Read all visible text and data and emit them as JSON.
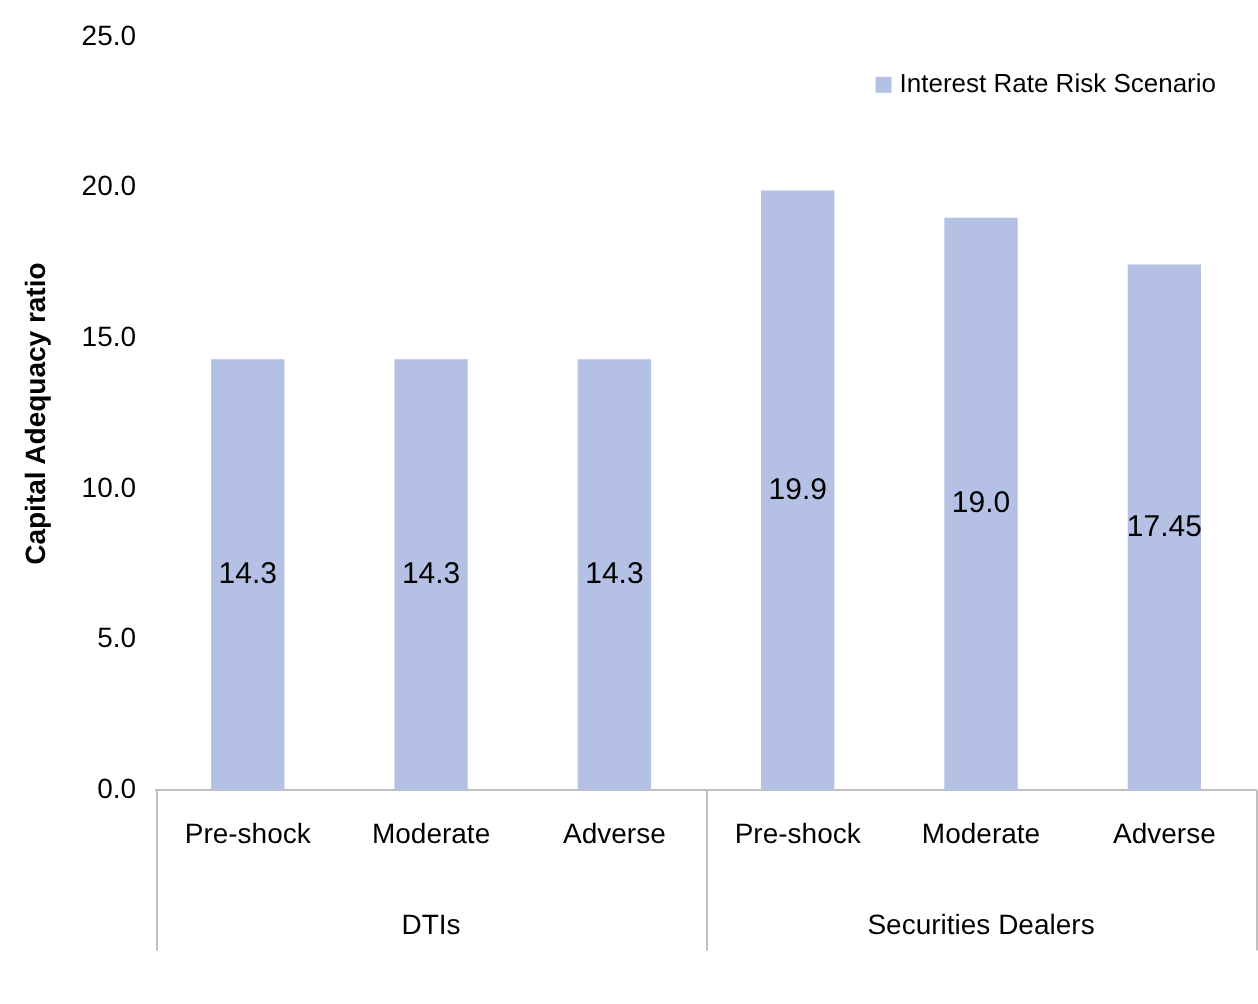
{
  "chart_data": {
    "type": "bar",
    "ylabel": "Capital Adequacy ratio",
    "categories": [
      "Pre-shock",
      "Moderate",
      "Adverse",
      "Pre-shock",
      "Moderate",
      "Adverse"
    ],
    "series": [
      {
        "name": "Interest Rate Risk Scenario",
        "color": "#b4c0e4",
        "values": [
          14.3,
          14.3,
          14.3,
          19.9,
          19.0,
          17.45
        ],
        "value_labels": [
          "14.3",
          "14.3",
          "14.3",
          "19.9",
          "19.0",
          "17.45"
        ]
      }
    ],
    "ylim": [
      0,
      25
    ],
    "yticks": [
      {
        "value": 0,
        "label": "0.0"
      },
      {
        "value": 5,
        "label": "5.0"
      },
      {
        "value": 10,
        "label": "10.0"
      },
      {
        "value": 15,
        "label": "15.0"
      },
      {
        "value": 20,
        "label": "20.0"
      },
      {
        "value": 25,
        "label": "25.0"
      }
    ],
    "annotations": [
      "DTIs",
      "Securities Dealers"
    ],
    "grid": false,
    "legend": "top right"
  }
}
